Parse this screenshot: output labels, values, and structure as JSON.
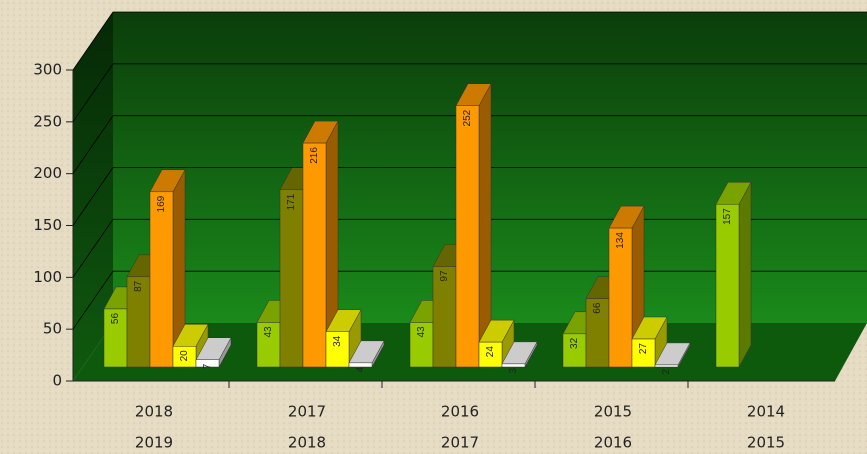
{
  "chart_data": {
    "type": "bar3d",
    "categories": [
      [
        "2018",
        "2019"
      ],
      [
        "2017",
        "2018"
      ],
      [
        "2016",
        "2017"
      ],
      [
        "2015",
        "2016"
      ],
      [
        "2014",
        "2015"
      ]
    ],
    "series": [
      {
        "color": "#99cc00",
        "values": [
          56,
          43,
          43,
          32,
          157
        ]
      },
      {
        "color": "#808000",
        "values": [
          87,
          171,
          97,
          66,
          null
        ]
      },
      {
        "color": "#ff9900",
        "values": [
          169,
          216,
          252,
          134,
          null
        ]
      },
      {
        "color": "#ffff00",
        "values": [
          20,
          34,
          24,
          27,
          null
        ]
      },
      {
        "color": "#ffffff",
        "values": [
          7,
          4,
          3,
          2,
          null
        ]
      }
    ],
    "ylim": [
      0,
      300
    ],
    "yticks": [
      0,
      50,
      100,
      150,
      200,
      250,
      300
    ],
    "grid": true
  }
}
